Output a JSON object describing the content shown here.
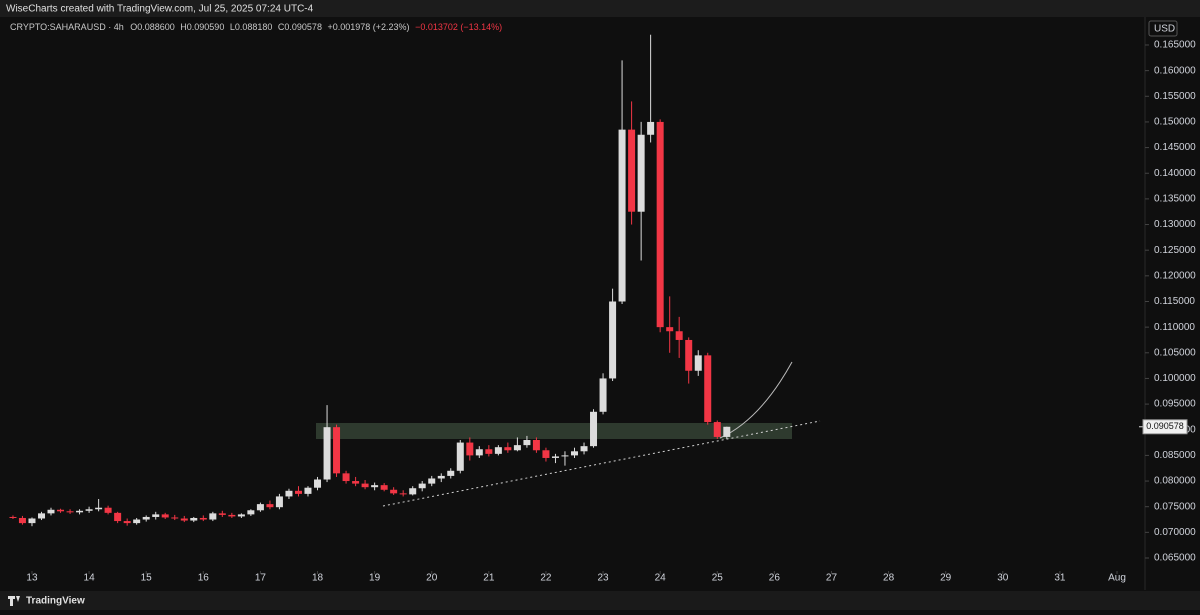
{
  "header": {
    "credit": "WiseCharts created with TradingView.com, Jul 25, 2025 07:24 UTC-4",
    "symbol": "CRYPTO:SAHARAUSD · 4h",
    "ohlc": [
      "O0.088600",
      "H0.090590",
      "L0.088180",
      "C0.090578"
    ],
    "change": "+0.001978 (+2.23%)",
    "period_change": "−0.013702 (−13.14%)"
  },
  "footer": {
    "brand": "TradingView"
  },
  "chart_data": {
    "type": "candlestick",
    "x": [
      12.667,
      12.833,
      13.0,
      13.167,
      13.333,
      13.5,
      13.667,
      13.833,
      14.0,
      14.167,
      14.333,
      14.5,
      14.667,
      14.833,
      15.0,
      15.167,
      15.333,
      15.5,
      15.667,
      15.833,
      16.0,
      16.167,
      16.333,
      16.5,
      16.667,
      16.833,
      17.0,
      17.167,
      17.333,
      17.5,
      17.667,
      17.833,
      18.0,
      18.167,
      18.333,
      18.5,
      18.667,
      18.833,
      19.0,
      19.167,
      19.333,
      19.5,
      19.667,
      19.833,
      20.0,
      20.167,
      20.333,
      20.5,
      20.667,
      20.833,
      21.0,
      21.167,
      21.333,
      21.5,
      21.667,
      21.833,
      22.0,
      22.167,
      22.333,
      22.5,
      22.667,
      22.833,
      23.0,
      23.167,
      23.333,
      23.5,
      23.667,
      23.833,
      24.0,
      24.167,
      24.333,
      24.5,
      24.667,
      24.833,
      25.0,
      25.167
    ],
    "open": [
      0.073,
      0.0728,
      0.0718,
      0.0727,
      0.0737,
      0.0744,
      0.0741,
      0.0739,
      0.0742,
      0.0745,
      0.0748,
      0.0738,
      0.0722,
      0.0718,
      0.0725,
      0.073,
      0.0735,
      0.0729,
      0.0727,
      0.0723,
      0.0728,
      0.0725,
      0.0737,
      0.0734,
      0.0731,
      0.0735,
      0.0743,
      0.0755,
      0.0749,
      0.077,
      0.0781,
      0.0775,
      0.0787,
      0.0803,
      0.0905,
      0.0815,
      0.08,
      0.0795,
      0.0788,
      0.0792,
      0.0783,
      0.0776,
      0.0774,
      0.0786,
      0.0795,
      0.0805,
      0.081,
      0.082,
      0.0875,
      0.085,
      0.0862,
      0.0853,
      0.0866,
      0.086,
      0.087,
      0.088,
      0.086,
      0.0845,
      0.0848,
      0.085,
      0.0858,
      0.0868,
      0.0935,
      0.1,
      0.115,
      0.1485,
      0.1325,
      0.1475,
      0.15,
      0.11,
      0.1092,
      0.1075,
      0.1015,
      0.1045,
      0.0915,
      0.0886
    ],
    "high": [
      0.0733,
      0.0732,
      0.0729,
      0.074,
      0.0748,
      0.0746,
      0.0745,
      0.0745,
      0.075,
      0.0765,
      0.0752,
      0.074,
      0.0727,
      0.0728,
      0.0733,
      0.074,
      0.0738,
      0.0734,
      0.0732,
      0.073,
      0.0733,
      0.074,
      0.0742,
      0.0738,
      0.0737,
      0.0745,
      0.0758,
      0.0762,
      0.0775,
      0.0785,
      0.079,
      0.079,
      0.0808,
      0.0948,
      0.091,
      0.082,
      0.0808,
      0.0802,
      0.0797,
      0.0796,
      0.0788,
      0.0782,
      0.079,
      0.08,
      0.081,
      0.0815,
      0.0825,
      0.088,
      0.0885,
      0.0868,
      0.087,
      0.087,
      0.0875,
      0.0885,
      0.0888,
      0.0885,
      0.0865,
      0.0853,
      0.0858,
      0.0865,
      0.0875,
      0.094,
      0.101,
      0.1175,
      0.162,
      0.154,
      0.15,
      0.167,
      0.1505,
      0.116,
      0.112,
      0.108,
      0.1055,
      0.105,
      0.0918,
      0.09059
    ],
    "low": [
      0.0726,
      0.0715,
      0.0712,
      0.0724,
      0.0733,
      0.0738,
      0.0736,
      0.0735,
      0.0738,
      0.0741,
      0.0735,
      0.0718,
      0.0713,
      0.0715,
      0.0721,
      0.0725,
      0.0726,
      0.0724,
      0.072,
      0.072,
      0.0722,
      0.0722,
      0.073,
      0.0728,
      0.0728,
      0.0732,
      0.074,
      0.0745,
      0.0745,
      0.0765,
      0.077,
      0.077,
      0.0782,
      0.0798,
      0.0808,
      0.0795,
      0.079,
      0.0784,
      0.0782,
      0.078,
      0.0773,
      0.077,
      0.0772,
      0.078,
      0.079,
      0.0798,
      0.0805,
      0.0815,
      0.084,
      0.0845,
      0.0848,
      0.085,
      0.0855,
      0.0858,
      0.0865,
      0.0855,
      0.0838,
      0.0835,
      0.083,
      0.0845,
      0.0852,
      0.0865,
      0.093,
      0.0995,
      0.1145,
      0.13,
      0.123,
      0.146,
      0.109,
      0.105,
      0.104,
      0.099,
      0.1005,
      0.091,
      0.0882,
      0.08818
    ],
    "close": [
      0.0728,
      0.0718,
      0.0727,
      0.0737,
      0.0744,
      0.0741,
      0.0739,
      0.0742,
      0.0745,
      0.0748,
      0.0738,
      0.0722,
      0.0718,
      0.0725,
      0.073,
      0.0735,
      0.0729,
      0.0727,
      0.0723,
      0.0728,
      0.0725,
      0.0737,
      0.0734,
      0.0731,
      0.0735,
      0.0743,
      0.0755,
      0.0749,
      0.077,
      0.0781,
      0.0775,
      0.0787,
      0.0803,
      0.0905,
      0.0815,
      0.08,
      0.0795,
      0.0788,
      0.0792,
      0.0783,
      0.0776,
      0.0774,
      0.0786,
      0.0795,
      0.0805,
      0.081,
      0.082,
      0.0875,
      0.085,
      0.0862,
      0.0853,
      0.0866,
      0.086,
      0.087,
      0.088,
      0.086,
      0.0845,
      0.0848,
      0.085,
      0.0858,
      0.0868,
      0.0935,
      0.1,
      0.115,
      0.1485,
      0.1325,
      0.1475,
      0.15,
      0.11,
      0.1092,
      0.1075,
      0.1015,
      0.1045,
      0.0915,
      0.0886,
      0.090578
    ],
    "up_color": "#dcdcdc",
    "down_color": "#f23645",
    "xlim": [
      12.44,
      32.49
    ],
    "xticks": [
      13,
      14,
      15,
      16,
      17,
      18,
      19,
      20,
      21,
      22,
      23,
      24,
      25,
      26,
      27,
      28,
      29,
      30,
      31,
      {
        "value": 32,
        "label": "Aug"
      }
    ],
    "ylim": [
      0.06266,
      0.17026
    ],
    "yticks": [
      {
        "value": 0.065,
        "label": "0.065000"
      },
      {
        "value": 0.07,
        "label": "0.070000"
      },
      {
        "value": 0.075,
        "label": "0.075000"
      },
      {
        "value": 0.08,
        "label": "0.080000"
      },
      {
        "value": 0.085,
        "label": "0.085000"
      },
      {
        "value": 0.09,
        "label": "0.090000"
      },
      {
        "value": 0.095,
        "label": "0.095000"
      },
      {
        "value": 0.1,
        "label": "0.100000"
      },
      {
        "value": 0.105,
        "label": "0.105000"
      },
      {
        "value": 0.11,
        "label": "0.110000"
      },
      {
        "value": 0.115,
        "label": "0.115000"
      },
      {
        "value": 0.12,
        "label": "0.120000"
      },
      {
        "value": 0.125,
        "label": "0.125000"
      },
      {
        "value": 0.13,
        "label": "0.130000"
      },
      {
        "value": 0.135,
        "label": "0.135000"
      },
      {
        "value": 0.14,
        "label": "0.140000"
      },
      {
        "value": 0.145,
        "label": "0.145000"
      },
      {
        "value": 0.15,
        "label": "0.150000"
      },
      {
        "value": 0.155,
        "label": "0.155000"
      },
      {
        "value": 0.16,
        "label": "0.160000"
      },
      {
        "value": 0.165,
        "label": "0.165000"
      }
    ],
    "currency": "USD",
    "last_price": 0.090578
  }
}
